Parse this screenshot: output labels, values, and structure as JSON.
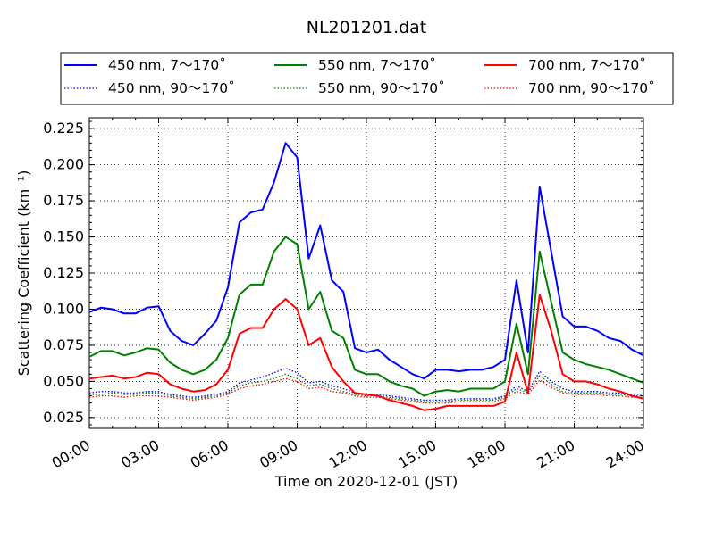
{
  "chart_data": {
    "type": "line",
    "title": "NL201201.dat",
    "xlabel": "Time on 2020-12-01 (JST)",
    "ylabel": "Scattering Coefficient (km⁻¹)",
    "xlim": [
      "00:00",
      "24:00"
    ],
    "ylim": [
      0.0175,
      0.2325
    ],
    "grid": true,
    "legend_position": "top",
    "x_ticks": [
      "00:00",
      "03:00",
      "06:00",
      "09:00",
      "12:00",
      "15:00",
      "18:00",
      "21:00",
      "24:00"
    ],
    "y_ticks": [
      "0.025",
      "0.050",
      "0.075",
      "0.100",
      "0.125",
      "0.150",
      "0.175",
      "0.200",
      "0.225"
    ],
    "x": [
      "00:00",
      "00:30",
      "01:00",
      "01:30",
      "02:00",
      "02:30",
      "03:00",
      "03:30",
      "04:00",
      "04:30",
      "05:00",
      "05:30",
      "06:00",
      "06:30",
      "07:00",
      "07:30",
      "08:00",
      "08:30",
      "09:00",
      "09:30",
      "10:00",
      "10:30",
      "11:00",
      "11:30",
      "12:00",
      "12:30",
      "13:00",
      "13:30",
      "14:00",
      "14:30",
      "15:00",
      "15:30",
      "16:00",
      "16:30",
      "17:00",
      "17:30",
      "18:00",
      "18:30",
      "19:00",
      "19:30",
      "20:00",
      "20:30",
      "21:00",
      "21:30",
      "22:00",
      "22:30",
      "23:00",
      "23:30",
      "24:00"
    ],
    "series": [
      {
        "name": "450 nm, 7～170˚",
        "color": "#0000ff",
        "style": "solid",
        "values": [
          0.098,
          0.101,
          0.1,
          0.097,
          0.097,
          0.101,
          0.102,
          0.085,
          0.078,
          0.075,
          0.083,
          0.092,
          0.115,
          0.16,
          0.167,
          0.169,
          0.188,
          0.215,
          0.205,
          0.135,
          0.158,
          0.12,
          0.112,
          0.073,
          0.07,
          0.072,
          0.065,
          0.06,
          0.055,
          0.052,
          0.058,
          0.058,
          0.057,
          0.058,
          0.058,
          0.06,
          0.065,
          0.12,
          0.07,
          0.185,
          0.14,
          0.095,
          0.088,
          0.088,
          0.085,
          0.08,
          0.078,
          0.072,
          0.068
        ]
      },
      {
        "name": "550 nm, 7～170˚",
        "color": "#008000",
        "style": "solid",
        "values": [
          0.067,
          0.071,
          0.071,
          0.068,
          0.07,
          0.073,
          0.072,
          0.063,
          0.058,
          0.055,
          0.058,
          0.065,
          0.08,
          0.11,
          0.117,
          0.117,
          0.14,
          0.15,
          0.145,
          0.1,
          0.112,
          0.085,
          0.08,
          0.058,
          0.055,
          0.055,
          0.05,
          0.047,
          0.045,
          0.04,
          0.043,
          0.044,
          0.043,
          0.045,
          0.045,
          0.045,
          0.05,
          0.09,
          0.055,
          0.14,
          0.105,
          0.07,
          0.065,
          0.062,
          0.06,
          0.058,
          0.055,
          0.052,
          0.049
        ]
      },
      {
        "name": "700 nm, 7～170˚",
        "color": "#ff0000",
        "style": "solid",
        "values": [
          0.052,
          0.053,
          0.054,
          0.052,
          0.053,
          0.056,
          0.055,
          0.048,
          0.045,
          0.043,
          0.044,
          0.048,
          0.058,
          0.083,
          0.087,
          0.087,
          0.1,
          0.107,
          0.1,
          0.075,
          0.08,
          0.06,
          0.05,
          0.042,
          0.041,
          0.04,
          0.037,
          0.035,
          0.033,
          0.03,
          0.031,
          0.033,
          0.033,
          0.033,
          0.033,
          0.033,
          0.036,
          0.07,
          0.042,
          0.11,
          0.085,
          0.055,
          0.05,
          0.05,
          0.048,
          0.045,
          0.043,
          0.04,
          0.038
        ]
      },
      {
        "name": "450 nm, 90～170˚",
        "color": "#0000ff",
        "style": "dotted",
        "values": [
          0.042,
          0.043,
          0.043,
          0.042,
          0.042,
          0.043,
          0.043,
          0.041,
          0.04,
          0.039,
          0.04,
          0.041,
          0.043,
          0.049,
          0.051,
          0.053,
          0.056,
          0.059,
          0.056,
          0.049,
          0.05,
          0.047,
          0.045,
          0.042,
          0.041,
          0.041,
          0.04,
          0.039,
          0.038,
          0.037,
          0.037,
          0.037,
          0.038,
          0.038,
          0.038,
          0.038,
          0.04,
          0.047,
          0.043,
          0.057,
          0.05,
          0.045,
          0.043,
          0.043,
          0.043,
          0.042,
          0.042,
          0.041,
          0.041
        ]
      },
      {
        "name": "550 nm, 90～170˚",
        "color": "#008000",
        "style": "dotted",
        "values": [
          0.041,
          0.041,
          0.042,
          0.041,
          0.041,
          0.042,
          0.042,
          0.04,
          0.039,
          0.038,
          0.039,
          0.04,
          0.042,
          0.047,
          0.049,
          0.05,
          0.052,
          0.055,
          0.052,
          0.047,
          0.048,
          0.045,
          0.043,
          0.041,
          0.04,
          0.04,
          0.039,
          0.038,
          0.037,
          0.036,
          0.036,
          0.036,
          0.037,
          0.037,
          0.037,
          0.037,
          0.039,
          0.045,
          0.042,
          0.054,
          0.048,
          0.043,
          0.042,
          0.042,
          0.042,
          0.041,
          0.041,
          0.04,
          0.04
        ]
      },
      {
        "name": "700 nm, 90～170˚",
        "color": "#ff0000",
        "style": "dotted",
        "values": [
          0.039,
          0.04,
          0.04,
          0.039,
          0.04,
          0.04,
          0.04,
          0.039,
          0.038,
          0.037,
          0.038,
          0.039,
          0.041,
          0.045,
          0.047,
          0.048,
          0.05,
          0.052,
          0.05,
          0.045,
          0.046,
          0.043,
          0.042,
          0.04,
          0.039,
          0.039,
          0.038,
          0.037,
          0.036,
          0.035,
          0.035,
          0.035,
          0.036,
          0.036,
          0.036,
          0.036,
          0.038,
          0.043,
          0.041,
          0.051,
          0.046,
          0.042,
          0.041,
          0.041,
          0.041,
          0.04,
          0.04,
          0.039,
          0.039
        ]
      }
    ],
    "legend_order": [
      0,
      3,
      1,
      4,
      2,
      5
    ]
  }
}
